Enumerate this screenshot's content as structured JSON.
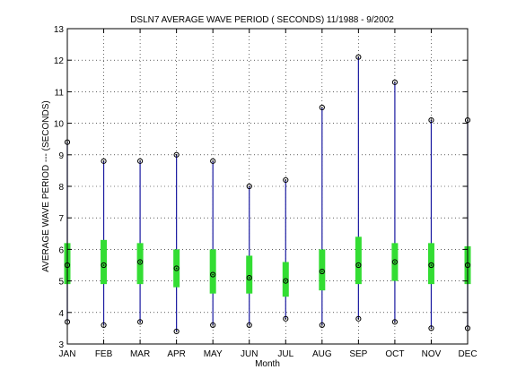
{
  "chart_data": {
    "type": "box",
    "title": "DSLN7  AVERAGE WAVE PERIOD ( SECONDS) 11/1988 - 9/2002",
    "xlabel": "Month",
    "ylabel": "AVERAGE WAVE PERIOD --- (SECONDS)",
    "categories": [
      "JAN",
      "FEB",
      "MAR",
      "APR",
      "MAY",
      "JUN",
      "JUL",
      "AUG",
      "SEP",
      "OCT",
      "NOV",
      "DEC"
    ],
    "ylim": [
      3,
      13
    ],
    "yticks": [
      3,
      4,
      5,
      6,
      7,
      8,
      9,
      10,
      11,
      12,
      13
    ],
    "grid": true,
    "series": [
      {
        "min": [
          3.7,
          3.6,
          3.7,
          3.4,
          3.6,
          3.6,
          3.8,
          3.6,
          3.8,
          3.7,
          3.5,
          3.5
        ],
        "max": [
          9.4,
          8.8,
          8.8,
          9.0,
          8.8,
          8.0,
          8.2,
          10.5,
          12.1,
          11.3,
          10.1,
          10.1
        ],
        "q1": [
          4.9,
          4.9,
          4.9,
          4.8,
          4.6,
          4.6,
          4.5,
          4.7,
          4.9,
          5.0,
          4.9,
          4.9
        ],
        "q3": [
          6.2,
          6.3,
          6.2,
          6.0,
          6.0,
          5.8,
          5.6,
          6.0,
          6.4,
          6.2,
          6.2,
          6.1
        ],
        "median": [
          5.5,
          5.5,
          5.6,
          5.4,
          5.2,
          5.1,
          5.0,
          5.3,
          5.5,
          5.6,
          5.5,
          5.5
        ]
      }
    ],
    "colors": {
      "whisker": "#1a1aa0",
      "box": "#33dd33",
      "marker": "#000000",
      "grid": "#000000"
    }
  }
}
